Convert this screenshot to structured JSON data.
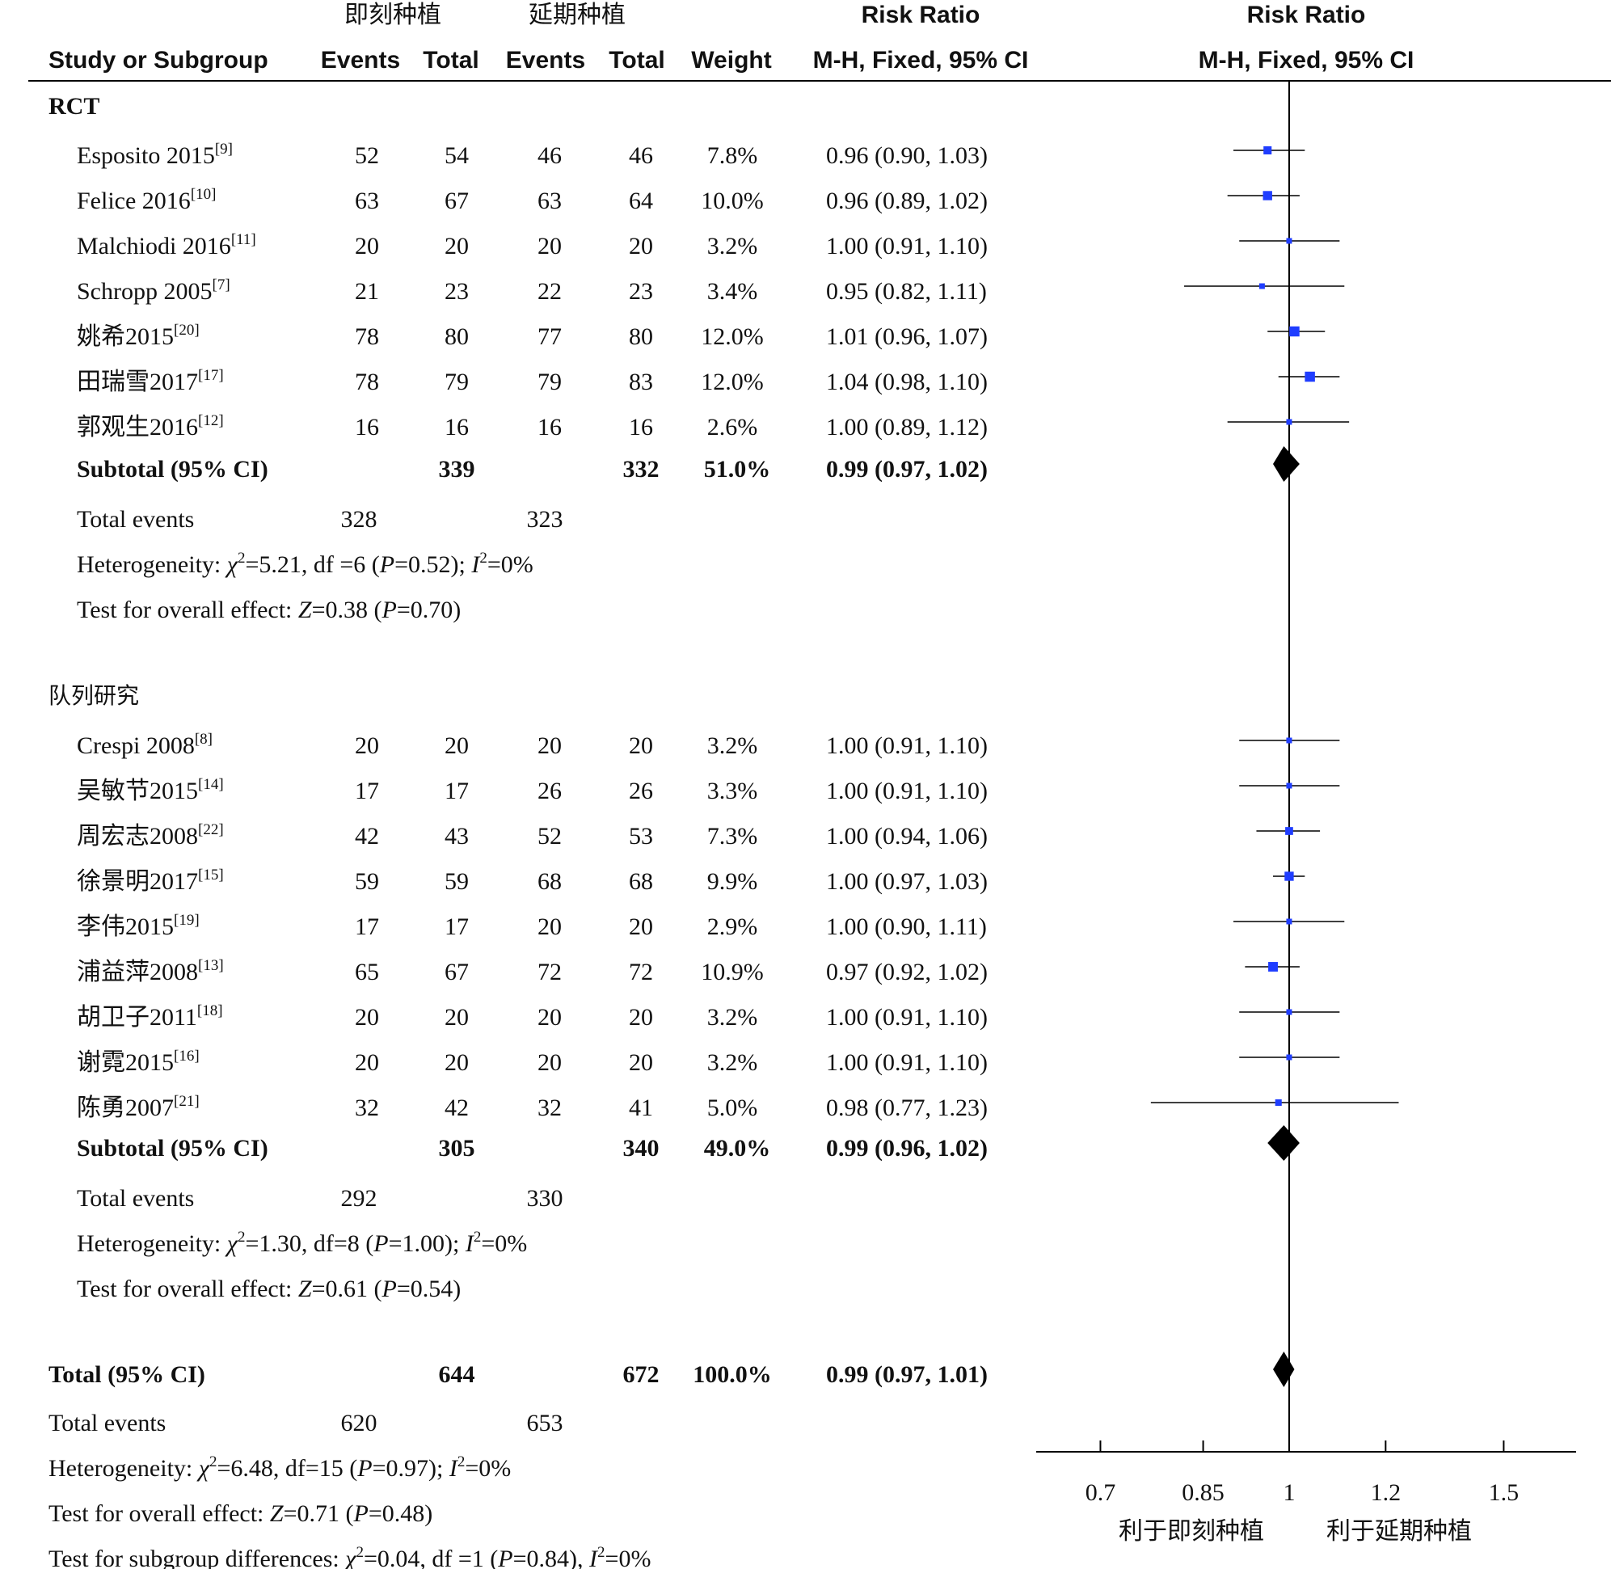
{
  "header": {
    "group1": "即刻种植",
    "group2": "延期种植",
    "col_study": "Study or Subgroup",
    "col_events1": "Events",
    "col_total1": "Total",
    "col_events2": "Events",
    "col_total2": "Total",
    "col_weight": "Weight",
    "rr_title": "Risk Ratio",
    "rr_method": "M-H, Fixed, 95% CI",
    "plot_title": "Risk Ratio",
    "plot_method": "M-H, Fixed, 95% CI"
  },
  "chart_data": {
    "type": "forest",
    "axis": {
      "scale": "log",
      "ticks": [
        0.7,
        0.85,
        1,
        1.2,
        1.5
      ],
      "tick_labels": [
        "0.7",
        "0.85",
        "1",
        "1.2",
        "1.5"
      ],
      "range": [
        0.62,
        1.72
      ],
      "reference": 1
    },
    "favors_left": "利于即刻种植",
    "favors_right": "利于延期种植",
    "subgroups": [
      {
        "name": "RCT",
        "studies": [
          {
            "name": "Esposito 2015",
            "ref": "[9]",
            "e1": 52,
            "t1": 54,
            "e2": 46,
            "t2": 46,
            "weight": "7.8%",
            "ci_text": "0.96 (0.90, 1.03)",
            "rr": 0.96,
            "lo": 0.9,
            "hi": 1.03
          },
          {
            "name": "Felice 2016",
            "ref": "[10]",
            "e1": 63,
            "t1": 67,
            "e2": 63,
            "t2": 64,
            "weight": "10.0%",
            "ci_text": "0.96 (0.89, 1.02)",
            "rr": 0.96,
            "lo": 0.89,
            "hi": 1.02
          },
          {
            "name": "Malchiodi 2016",
            "ref": "[11]",
            "e1": 20,
            "t1": 20,
            "e2": 20,
            "t2": 20,
            "weight": "3.2%",
            "ci_text": "1.00 (0.91, 1.10)",
            "rr": 1.0,
            "lo": 0.91,
            "hi": 1.1
          },
          {
            "name": "Schropp 2005",
            "ref": "[7]",
            "e1": 21,
            "t1": 23,
            "e2": 22,
            "t2": 23,
            "weight": "3.4%",
            "ci_text": "0.95 (0.82, 1.11)",
            "rr": 0.95,
            "lo": 0.82,
            "hi": 1.11
          },
          {
            "name": "姚希2015",
            "ref": "[20]",
            "e1": 78,
            "t1": 80,
            "e2": 77,
            "t2": 80,
            "weight": "12.0%",
            "ci_text": "1.01 (0.96, 1.07)",
            "rr": 1.01,
            "lo": 0.96,
            "hi": 1.07
          },
          {
            "name": "田瑞雪2017",
            "ref": "[17]",
            "e1": 78,
            "t1": 79,
            "e2": 79,
            "t2": 83,
            "weight": "12.0%",
            "ci_text": "1.04 (0.98, 1.10)",
            "rr": 1.04,
            "lo": 0.98,
            "hi": 1.1
          },
          {
            "name": "郭观生2016",
            "ref": "[12]",
            "e1": 16,
            "t1": 16,
            "e2": 16,
            "t2": 16,
            "weight": "2.6%",
            "ci_text": "1.00 (0.89, 1.12)",
            "rr": 1.0,
            "lo": 0.89,
            "hi": 1.12
          }
        ],
        "subtotal": {
          "label": "Subtotal (95% CI)",
          "t1": 339,
          "t2": 332,
          "weight": "51.0%",
          "ci_text": "0.99 (0.97, 1.02)",
          "rr": 0.99,
          "lo": 0.97,
          "hi": 1.02
        },
        "total_events": {
          "label": "Total events",
          "e1": 328,
          "e2": 323
        },
        "heterogeneity": {
          "prefix": "Heterogeneity: ",
          "chi": "χ",
          "chi_val": "=5.21, df =6 (",
          "p_label": "P",
          "p_val": "=0.52); ",
          "i_label": "I",
          "i_val": "=0%"
        },
        "overall": {
          "prefix": "Test for overall effect: ",
          "z_label": "Z",
          "z_val": "=0.38 (",
          "p_label": "P",
          "p_val": "=0.70)"
        }
      },
      {
        "name": "队列研究",
        "studies": [
          {
            "name": "Crespi 2008",
            "ref": "[8]",
            "e1": 20,
            "t1": 20,
            "e2": 20,
            "t2": 20,
            "weight": "3.2%",
            "ci_text": "1.00 (0.91, 1.10)",
            "rr": 1.0,
            "lo": 0.91,
            "hi": 1.1
          },
          {
            "name": "吴敏节2015",
            "ref": "[14]",
            "e1": 17,
            "t1": 17,
            "e2": 26,
            "t2": 26,
            "weight": "3.3%",
            "ci_text": "1.00 (0.91, 1.10)",
            "rr": 1.0,
            "lo": 0.91,
            "hi": 1.1
          },
          {
            "name": "周宏志2008",
            "ref": "[22]",
            "e1": 42,
            "t1": 43,
            "e2": 52,
            "t2": 53,
            "weight": "7.3%",
            "ci_text": "1.00 (0.94, 1.06)",
            "rr": 1.0,
            "lo": 0.94,
            "hi": 1.06
          },
          {
            "name": "徐景明2017",
            "ref": "[15]",
            "e1": 59,
            "t1": 59,
            "e2": 68,
            "t2": 68,
            "weight": "9.9%",
            "ci_text": "1.00 (0.97, 1.03)",
            "rr": 1.0,
            "lo": 0.97,
            "hi": 1.03
          },
          {
            "name": "李伟2015",
            "ref": "[19]",
            "e1": 17,
            "t1": 17,
            "e2": 20,
            "t2": 20,
            "weight": "2.9%",
            "ci_text": "1.00 (0.90, 1.11)",
            "rr": 1.0,
            "lo": 0.9,
            "hi": 1.11
          },
          {
            "name": "浦益萍2008",
            "ref": "[13]",
            "e1": 65,
            "t1": 67,
            "e2": 72,
            "t2": 72,
            "weight": "10.9%",
            "ci_text": "0.97 (0.92, 1.02)",
            "rr": 0.97,
            "lo": 0.92,
            "hi": 1.02
          },
          {
            "name": "胡卫子2011",
            "ref": "[18]",
            "e1": 20,
            "t1": 20,
            "e2": 20,
            "t2": 20,
            "weight": "3.2%",
            "ci_text": "1.00 (0.91, 1.10)",
            "rr": 1.0,
            "lo": 0.91,
            "hi": 1.1
          },
          {
            "name": "谢霓2015",
            "ref": "[16]",
            "e1": 20,
            "t1": 20,
            "e2": 20,
            "t2": 20,
            "weight": "3.2%",
            "ci_text": "1.00 (0.91, 1.10)",
            "rr": 1.0,
            "lo": 0.91,
            "hi": 1.1
          },
          {
            "name": "陈勇2007",
            "ref": "[21]",
            "e1": 32,
            "t1": 42,
            "e2": 32,
            "t2": 41,
            "weight": "5.0%",
            "ci_text": "0.98 (0.77, 1.23)",
            "rr": 0.98,
            "lo": 0.77,
            "hi": 1.23
          }
        ],
        "subtotal": {
          "label": "Subtotal (95% CI)",
          "t1": 305,
          "t2": 340,
          "weight": "49.0%",
          "ci_text": "0.99 (0.96, 1.02)",
          "rr": 0.99,
          "lo": 0.96,
          "hi": 1.02
        },
        "total_events": {
          "label": "Total events",
          "e1": 292,
          "e2": 330
        },
        "heterogeneity": {
          "prefix": "Heterogeneity: ",
          "chi": "χ",
          "chi_val": "=1.30, df=8 (",
          "p_label": "P",
          "p_val": "=1.00); ",
          "i_label": "I",
          "i_val": "=0%"
        },
        "overall": {
          "prefix": "Test for overall effect: ",
          "z_label": "Z",
          "z_val": "=0.61 (",
          "p_label": "P",
          "p_val": "=0.54)"
        }
      }
    ],
    "total": {
      "label": "Total (95% CI)",
      "t1": 644,
      "t2": 672,
      "weight": "100.0%",
      "ci_text": "0.99 (0.97, 1.01)",
      "rr": 0.99,
      "lo": 0.97,
      "hi": 1.01
    },
    "total_events": {
      "label": "Total events",
      "e1": 620,
      "e2": 653
    },
    "heterogeneity": {
      "prefix": "Heterogeneity: ",
      "chi": "χ",
      "chi_val": "=6.48, df=15 (",
      "p_label": "P",
      "p_val": "=0.97); ",
      "i_label": "I",
      "i_val": "=0%"
    },
    "overall": {
      "prefix": "Test for overall effect: ",
      "z_label": "Z",
      "z_val": "=0.71 (",
      "p_label": "P",
      "p_val": "=0.48)"
    },
    "subgroup_diff": {
      "prefix": "Test for subgroup differences: ",
      "chi": "χ",
      "chi_val": "=0.04, df =1 (",
      "p_label": "P",
      "p_val": "=0.84), ",
      "i_label": "I",
      "i_val": "=0%"
    },
    "colors": {
      "marker": "#1f3dff",
      "diamond": "#000000",
      "line": "#000000"
    }
  }
}
